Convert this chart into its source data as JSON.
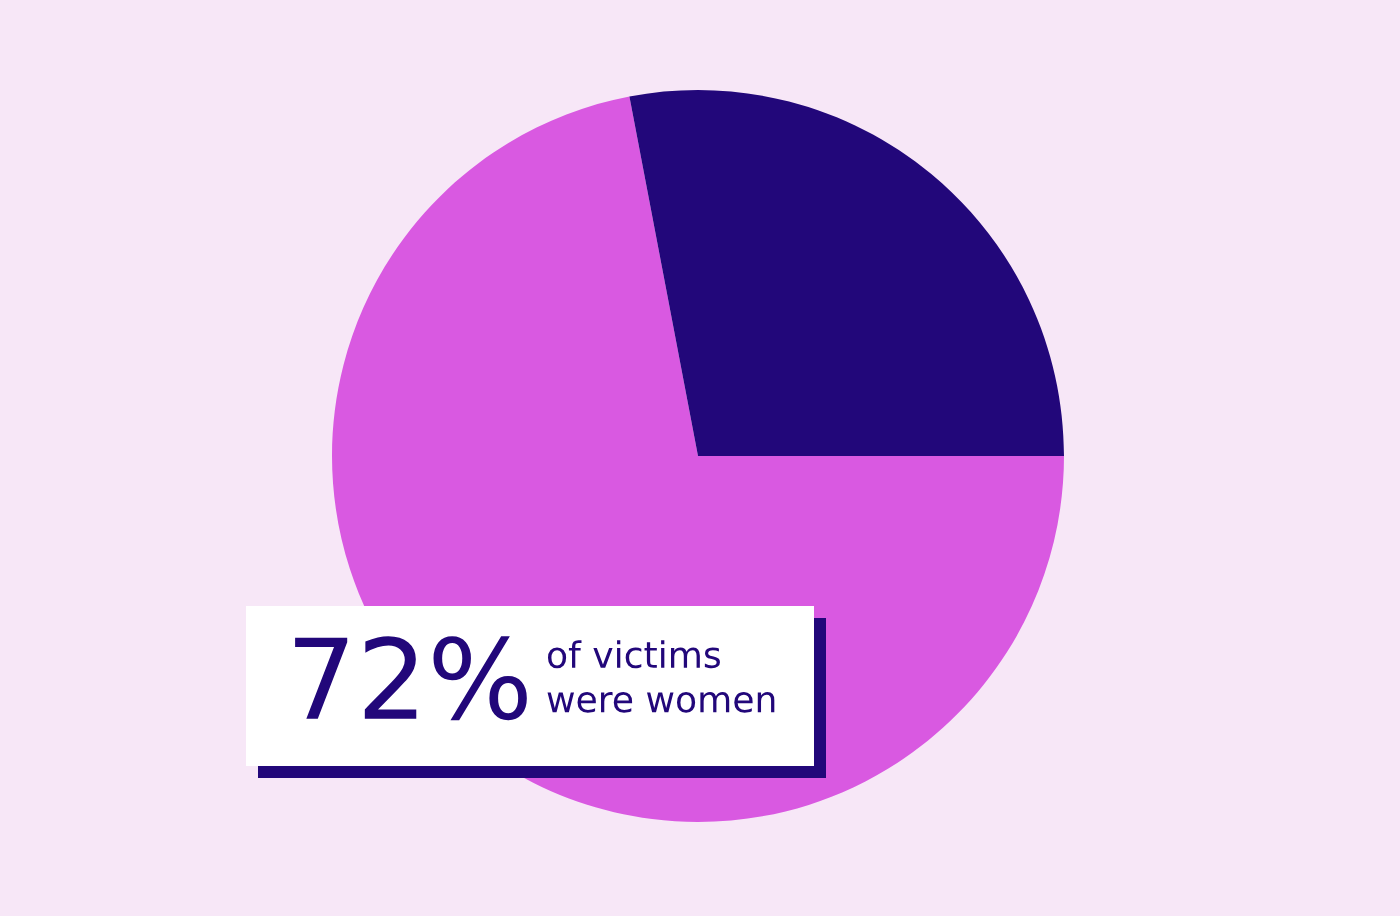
{
  "chart_data": {
    "type": "pie",
    "categories": [
      null,
      null
    ],
    "values": [
      72,
      28
    ],
    "colors": [
      "#d959e1",
      "#22077a"
    ],
    "value_labels": [
      "72%",
      null
    ],
    "annotations": [
      "of victims\nwere women"
    ]
  }
}
